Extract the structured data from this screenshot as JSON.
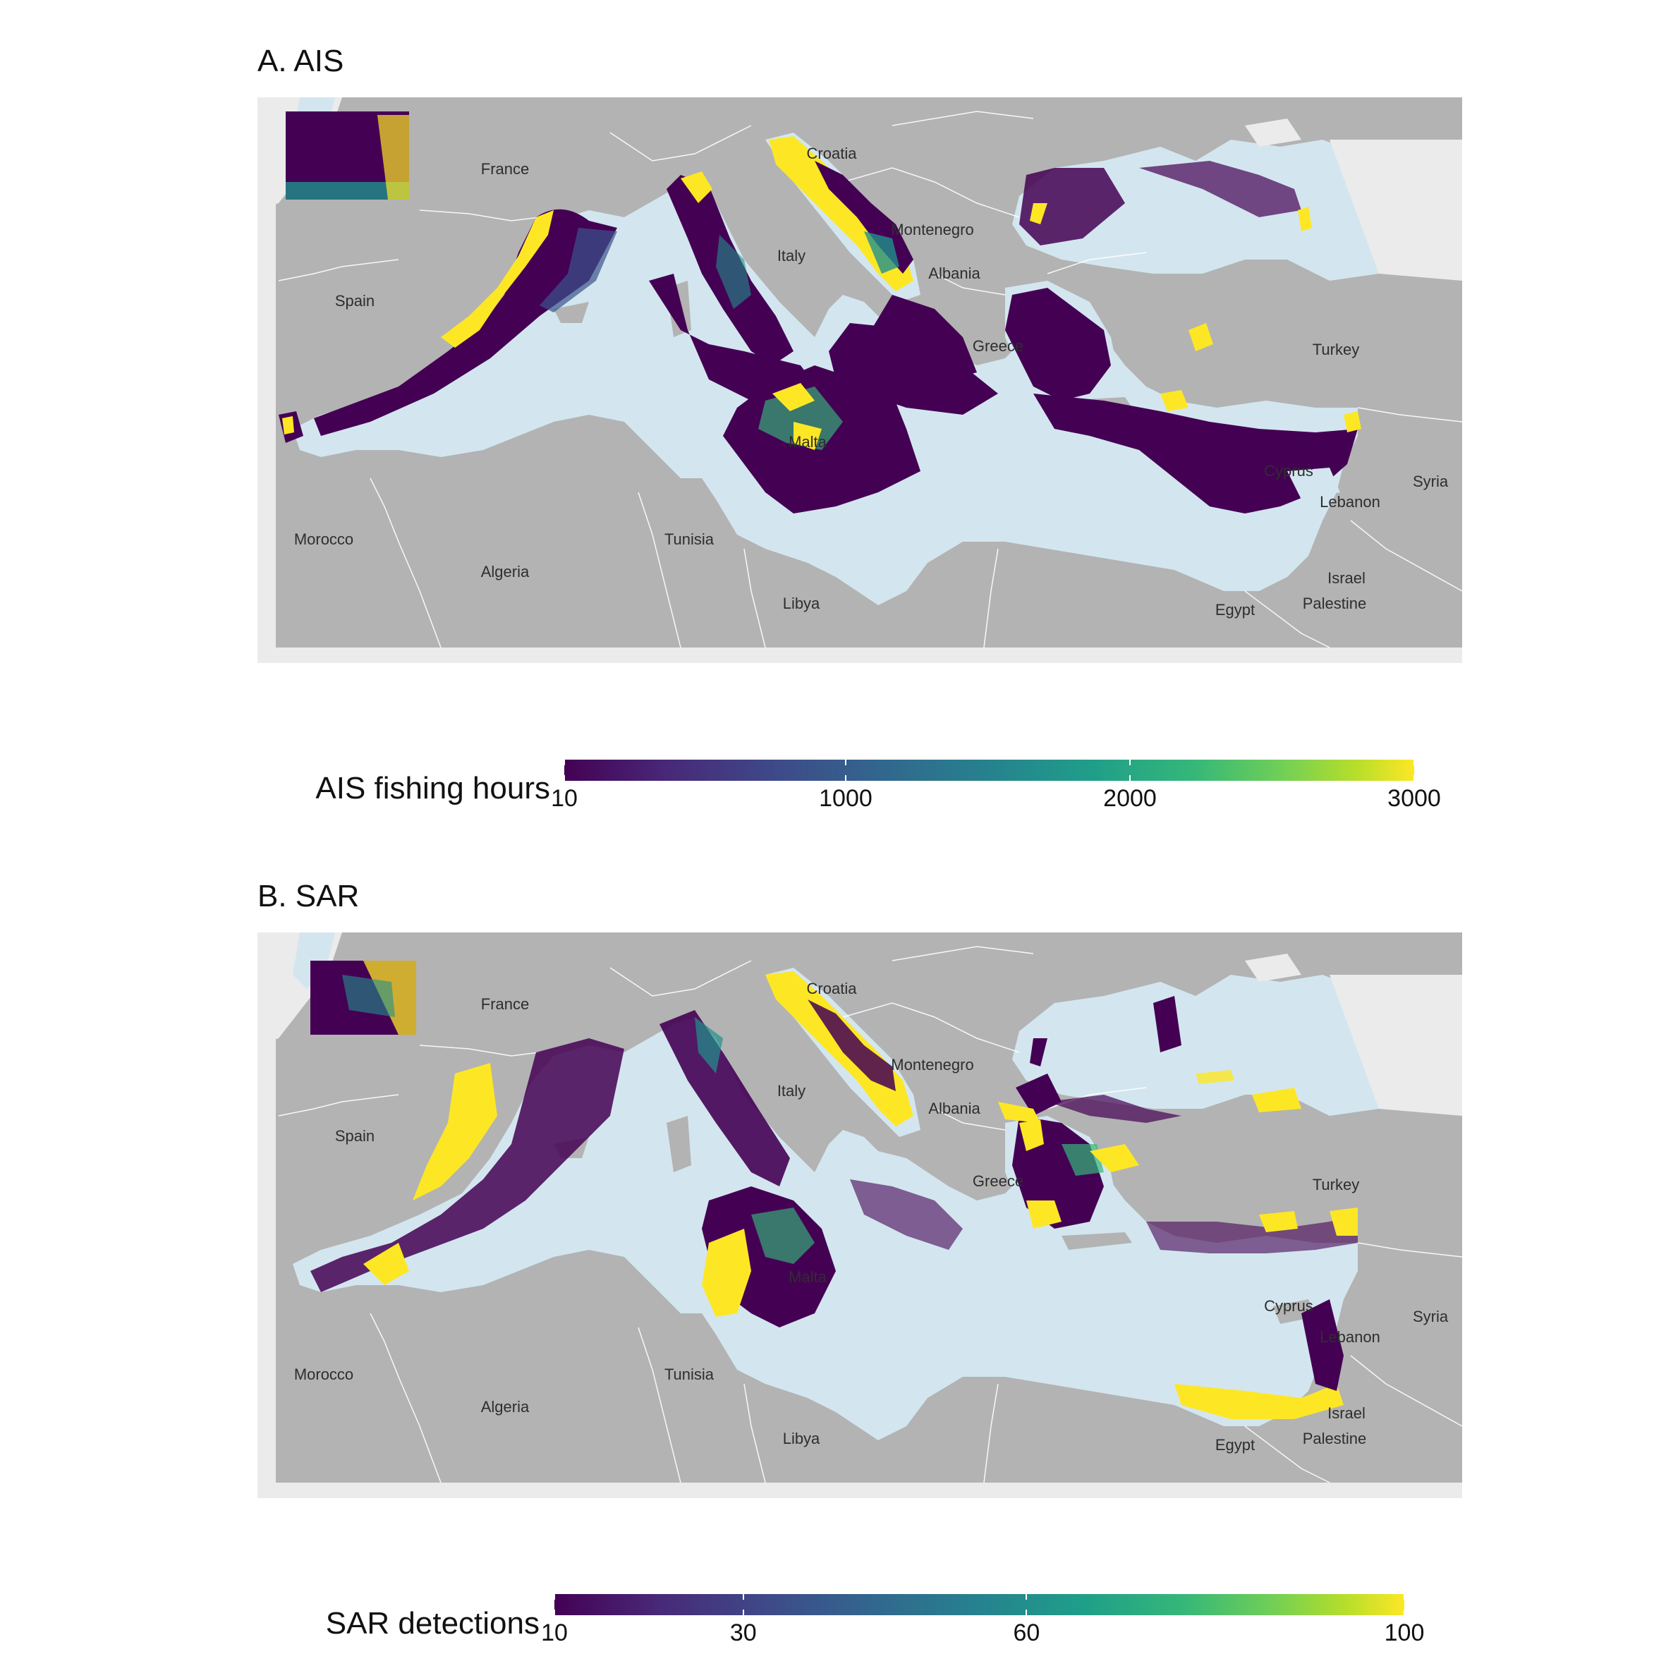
{
  "panels": [
    {
      "title": "A. AIS",
      "legend_title": "AIS fishing hours",
      "legend_ticks": [
        {
          "label": "10",
          "value": 10
        },
        {
          "label": "1000",
          "value": 1000
        },
        {
          "label": "2000",
          "value": 2000
        },
        {
          "label": "3000",
          "value": 3000
        }
      ],
      "legend_range": [
        10,
        3000
      ]
    },
    {
      "title": "B. SAR",
      "legend_title": "SAR detections",
      "legend_ticks": [
        {
          "label": "10",
          "value": 10
        },
        {
          "label": "30",
          "value": 30
        },
        {
          "label": "60",
          "value": 60
        },
        {
          "label": "100",
          "value": 100
        }
      ],
      "legend_range": [
        10,
        100
      ]
    }
  ],
  "countries": [
    "France",
    "Spain",
    "Italy",
    "Croatia",
    "Montenegro",
    "Albania",
    "Greece",
    "Turkey",
    "Morocco",
    "Algeria",
    "Tunisia",
    "Libya",
    "Egypt",
    "Israel",
    "Palestine",
    "Lebanon",
    "Syria",
    "Cyprus",
    "Malta"
  ],
  "colors": {
    "land": "#b3b3b3",
    "sea": "#d3e6ef",
    "panel_background": "#ebebeb",
    "borders": "#ffffff",
    "viridis_low": "#440154",
    "viridis_high": "#fde725"
  }
}
